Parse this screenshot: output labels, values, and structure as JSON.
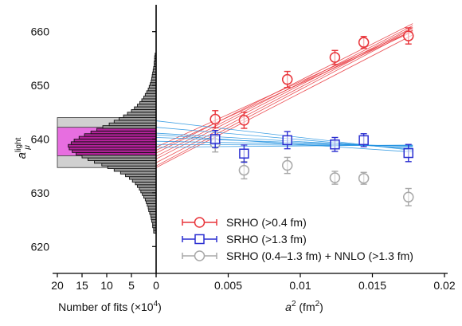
{
  "chart_data": [
    {
      "type": "scatter",
      "ylabel_main": "a",
      "ylabel_sup": "light",
      "ylabel_sub": "μ",
      "xlabel_main": "a",
      "xlabel_sup": "2",
      "xlabel_unit": " (fm",
      "xlabel_unit_sup": "2",
      "xlabel_close": ")",
      "xlim": [
        0,
        0.02
      ],
      "ylim": [
        615,
        665
      ],
      "x_ticks": [
        {
          "v": 0,
          "label": "0"
        },
        {
          "v": 0.005,
          "label": "0.005"
        },
        {
          "v": 0.01,
          "label": "0.01"
        },
        {
          "v": 0.015,
          "label": "0.015"
        },
        {
          "v": 0.02,
          "label": "0.02"
        }
      ],
      "y_ticks": [
        {
          "v": 620,
          "label": "620"
        },
        {
          "v": 630,
          "label": "630"
        },
        {
          "v": 640,
          "label": "640"
        },
        {
          "v": 650,
          "label": "650"
        },
        {
          "v": 660,
          "label": "660"
        }
      ],
      "series": [
        {
          "name": "SRHO (>0.4 fm)",
          "color": "#e8343a",
          "marker": "circle",
          "x": [
            0.0041,
            0.0061,
            0.0091,
            0.0124,
            0.0144,
            0.0175
          ],
          "y": [
            643.7,
            643.5,
            651.1,
            655.2,
            658.0,
            659.2
          ],
          "err": [
            1.6,
            1.5,
            1.5,
            1.3,
            1.1,
            1.5
          ]
        },
        {
          "name": "SRHO (>1.3 fm)",
          "color": "#2b2fd1",
          "marker": "square",
          "x": [
            0.0041,
            0.0061,
            0.0091,
            0.0124,
            0.0144,
            0.0175
          ],
          "y": [
            640.0,
            637.3,
            639.8,
            639.0,
            639.8,
            637.4
          ],
          "err": [
            1.6,
            1.6,
            1.6,
            1.3,
            1.2,
            1.6
          ]
        },
        {
          "name": "SRHO (0.4–1.3 fm) + NNLO (>1.3 fm)",
          "color": "#a8a8a8",
          "marker": "circle",
          "x": [
            0.0041,
            0.0061,
            0.0091,
            0.0124,
            0.0144,
            0.0175
          ],
          "y": [
            639.2,
            634.2,
            635.1,
            632.8,
            632.7,
            629.2
          ],
          "err": [
            1.6,
            1.6,
            1.5,
            1.2,
            1.1,
            1.6
          ]
        }
      ],
      "fit_bands": [
        {
          "color": "#e8343a",
          "lines": [
            {
              "y0": 635.0,
              "y1": 660.3
            },
            {
              "y0": 636.3,
              "y1": 660.8
            },
            {
              "y0": 637.4,
              "y1": 661.5
            },
            {
              "y0": 634.7,
              "y1": 659.4
            },
            {
              "y0": 635.6,
              "y1": 660.6
            },
            {
              "y0": 636.8,
              "y1": 661.1
            },
            {
              "y0": 638.5,
              "y1": 660.2
            },
            {
              "y0": 637.9,
              "y1": 660.0
            }
          ]
        },
        {
          "color": "#1e90e0",
          "lines": [
            {
              "y0": 643.4,
              "y1": 637.9
            },
            {
              "y0": 642.2,
              "y1": 638.1
            },
            {
              "y0": 641.1,
              "y1": 638.3
            },
            {
              "y0": 640.3,
              "y1": 638.6
            },
            {
              "y0": 639.6,
              "y1": 638.7
            },
            {
              "y0": 639.0,
              "y1": 638.8
            },
            {
              "y0": 638.5,
              "y1": 638.9
            },
            {
              "y0": 640.8,
              "y1": 637.6
            }
          ]
        }
      ],
      "legend_position": "bottom-right"
    },
    {
      "type": "bar",
      "orientation": "horizontal",
      "xlabel": "Number of fits (×10",
      "xlabel_sup": "4",
      "xlabel_close": ")",
      "xlim": [
        20,
        0
      ],
      "x_ticks": [
        {
          "v": 20,
          "label": "20"
        },
        {
          "v": 15,
          "label": "15"
        },
        {
          "v": 10,
          "label": "10"
        },
        {
          "v": 5,
          "label": "5"
        },
        {
          "v": 0,
          "label": "0"
        }
      ],
      "bin_width": 0.5,
      "bins": [
        {
          "y": 622.75,
          "count": 0.5
        },
        {
          "y": 623.25,
          "count": 0.5
        },
        {
          "y": 623.75,
          "count": 0.7
        },
        {
          "y": 624.25,
          "count": 0.7
        },
        {
          "y": 624.75,
          "count": 0.9
        },
        {
          "y": 625.25,
          "count": 1.0
        },
        {
          "y": 625.75,
          "count": 1.1
        },
        {
          "y": 626.25,
          "count": 1.3
        },
        {
          "y": 626.75,
          "count": 1.5
        },
        {
          "y": 627.25,
          "count": 1.6
        },
        {
          "y": 627.75,
          "count": 1.8
        },
        {
          "y": 628.25,
          "count": 2.0
        },
        {
          "y": 628.75,
          "count": 2.2
        },
        {
          "y": 629.25,
          "count": 2.5
        },
        {
          "y": 629.75,
          "count": 2.8
        },
        {
          "y": 630.25,
          "count": 3.1
        },
        {
          "y": 630.75,
          "count": 3.4
        },
        {
          "y": 631.25,
          "count": 3.8
        },
        {
          "y": 631.75,
          "count": 4.2
        },
        {
          "y": 632.25,
          "count": 4.8
        },
        {
          "y": 632.75,
          "count": 5.4
        },
        {
          "y": 633.25,
          "count": 6.2
        },
        {
          "y": 633.75,
          "count": 7.2
        },
        {
          "y": 634.25,
          "count": 8.5
        },
        {
          "y": 634.75,
          "count": 9.8
        },
        {
          "y": 635.25,
          "count": 11.0
        },
        {
          "y": 635.75,
          "count": 12.5
        },
        {
          "y": 636.25,
          "count": 13.8
        },
        {
          "y": 636.75,
          "count": 15.0
        },
        {
          "y": 637.25,
          "count": 16.2
        },
        {
          "y": 637.75,
          "count": 17.0
        },
        {
          "y": 638.25,
          "count": 17.6
        },
        {
          "y": 638.75,
          "count": 17.8
        },
        {
          "y": 639.25,
          "count": 17.2
        },
        {
          "y": 639.75,
          "count": 16.6
        },
        {
          "y": 640.25,
          "count": 15.6
        },
        {
          "y": 640.75,
          "count": 14.5
        },
        {
          "y": 641.25,
          "count": 13.2
        },
        {
          "y": 641.75,
          "count": 12.0
        },
        {
          "y": 642.25,
          "count": 10.8
        },
        {
          "y": 642.75,
          "count": 9.5
        },
        {
          "y": 643.25,
          "count": 8.5
        },
        {
          "y": 643.75,
          "count": 7.5
        },
        {
          "y": 644.25,
          "count": 6.6
        },
        {
          "y": 644.75,
          "count": 5.8
        },
        {
          "y": 645.25,
          "count": 5.0
        },
        {
          "y": 645.75,
          "count": 4.4
        },
        {
          "y": 646.25,
          "count": 3.8
        },
        {
          "y": 646.75,
          "count": 3.3
        },
        {
          "y": 647.25,
          "count": 2.9
        },
        {
          "y": 647.75,
          "count": 2.5
        },
        {
          "y": 648.25,
          "count": 2.2
        },
        {
          "y": 648.75,
          "count": 1.9
        },
        {
          "y": 649.25,
          "count": 1.6
        },
        {
          "y": 649.75,
          "count": 1.4
        },
        {
          "y": 650.25,
          "count": 1.2
        },
        {
          "y": 650.75,
          "count": 1.0
        },
        {
          "y": 651.25,
          "count": 0.9
        },
        {
          "y": 651.75,
          "count": 0.8
        },
        {
          "y": 652.25,
          "count": 0.7
        },
        {
          "y": 652.75,
          "count": 0.6
        },
        {
          "y": 653.25,
          "count": 0.5
        },
        {
          "y": 653.75,
          "count": 0.4
        },
        {
          "y": 654.25,
          "count": 0.4
        },
        {
          "y": 654.75,
          "count": 0.3
        },
        {
          "y": 655.25,
          "count": 0.3
        },
        {
          "y": 655.75,
          "count": 0.2
        }
      ],
      "bands": {
        "outer": [
          634.7,
          644.0
        ],
        "inner": [
          636.9,
          642.2
        ],
        "outer_color": "#d0d0d0",
        "inner_color": "#e76ee0",
        "bar_fill": "#9a9a9a",
        "bar_fill_inner": "#b3219a"
      }
    }
  ]
}
